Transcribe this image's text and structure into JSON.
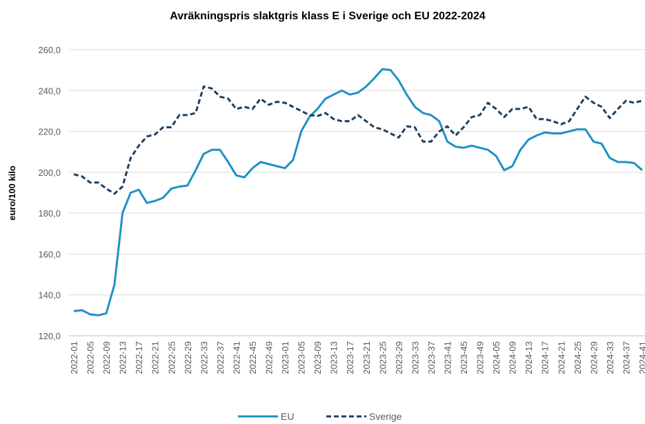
{
  "chart_data": {
    "type": "line",
    "title": "Avräkningspris  slaktgris klass E i Sverige och EU 2022-2024",
    "y_label": "euro/100 kilo",
    "categories": [
      "2022-01",
      null,
      "2022-05",
      null,
      "2022-09",
      null,
      "2022-13",
      null,
      "2022-17",
      null,
      "2022-21",
      null,
      "2022-25",
      null,
      "2022-29",
      null,
      "2022-33",
      null,
      "2022-37",
      null,
      "2022-41",
      null,
      "2022-45",
      null,
      "2022-49",
      null,
      "2023-01",
      null,
      "2023-05",
      null,
      "2023-09",
      null,
      "2023-13",
      null,
      "2023-17",
      null,
      "2023-21",
      null,
      "2023-25",
      null,
      "2023-29",
      null,
      "2023-33",
      null,
      "2023-37",
      null,
      "2023-41",
      null,
      "2023-45",
      null,
      "2023-49",
      null,
      "2024-05",
      null,
      "2024-09",
      null,
      "2024-13",
      null,
      "2024-17",
      null,
      "2024-21",
      null,
      "2024-25",
      null,
      "2024-29",
      null,
      "2024-33",
      null,
      "2024-37",
      null,
      "2024-41"
    ],
    "series": [
      {
        "name": "EU",
        "color": "#1f8fc6",
        "dash": "solid",
        "values": [
          132,
          132.5,
          130.5,
          130,
          131,
          145,
          180,
          190,
          191.5,
          185,
          186,
          187.5,
          192,
          193,
          193.5,
          201,
          209,
          211,
          211,
          205,
          198.5,
          197.5,
          202,
          205,
          204,
          203,
          202,
          206,
          220,
          227,
          231,
          236,
          238,
          240,
          238,
          239,
          242,
          246,
          250.5,
          250,
          245,
          238,
          232,
          229,
          228,
          225,
          215,
          212.5,
          212,
          213,
          212,
          211,
          208,
          201,
          203,
          211,
          216,
          218,
          219.5,
          219,
          219,
          220,
          221,
          221,
          215,
          214,
          207,
          205,
          205,
          204.5,
          201
        ]
      },
      {
        "name": "Sverige",
        "color": "#1f3f5f",
        "dash": "dashed",
        "values": [
          199,
          198,
          195,
          195,
          192,
          189.5,
          193,
          207,
          213,
          217.5,
          218.5,
          222,
          222,
          228,
          228,
          229,
          242,
          241,
          237,
          236,
          231,
          232,
          231,
          236,
          233,
          234.5,
          234,
          232,
          230,
          228,
          227.5,
          229,
          226,
          225,
          225,
          228,
          225,
          222,
          221,
          219,
          217,
          222.5,
          222,
          215,
          215,
          220,
          222.5,
          218,
          222,
          227,
          228,
          234,
          231,
          227,
          231,
          231,
          232,
          226,
          226,
          225,
          223.5,
          225,
          231,
          237,
          234,
          232,
          226.5,
          231,
          235,
          234,
          235
        ]
      }
    ],
    "ylim": [
      120,
      260
    ],
    "yticks": [
      {
        "value": 120,
        "label": "120,0"
      },
      {
        "value": 140,
        "label": "140,0"
      },
      {
        "value": 160,
        "label": "160,0"
      },
      {
        "value": 180,
        "label": "180,0"
      },
      {
        "value": 200,
        "label": "200,0"
      },
      {
        "value": 220,
        "label": "220,0"
      },
      {
        "value": 240,
        "label": "240,0"
      },
      {
        "value": 260,
        "label": "260,0"
      }
    ],
    "grid": true,
    "legend": "bottom"
  }
}
